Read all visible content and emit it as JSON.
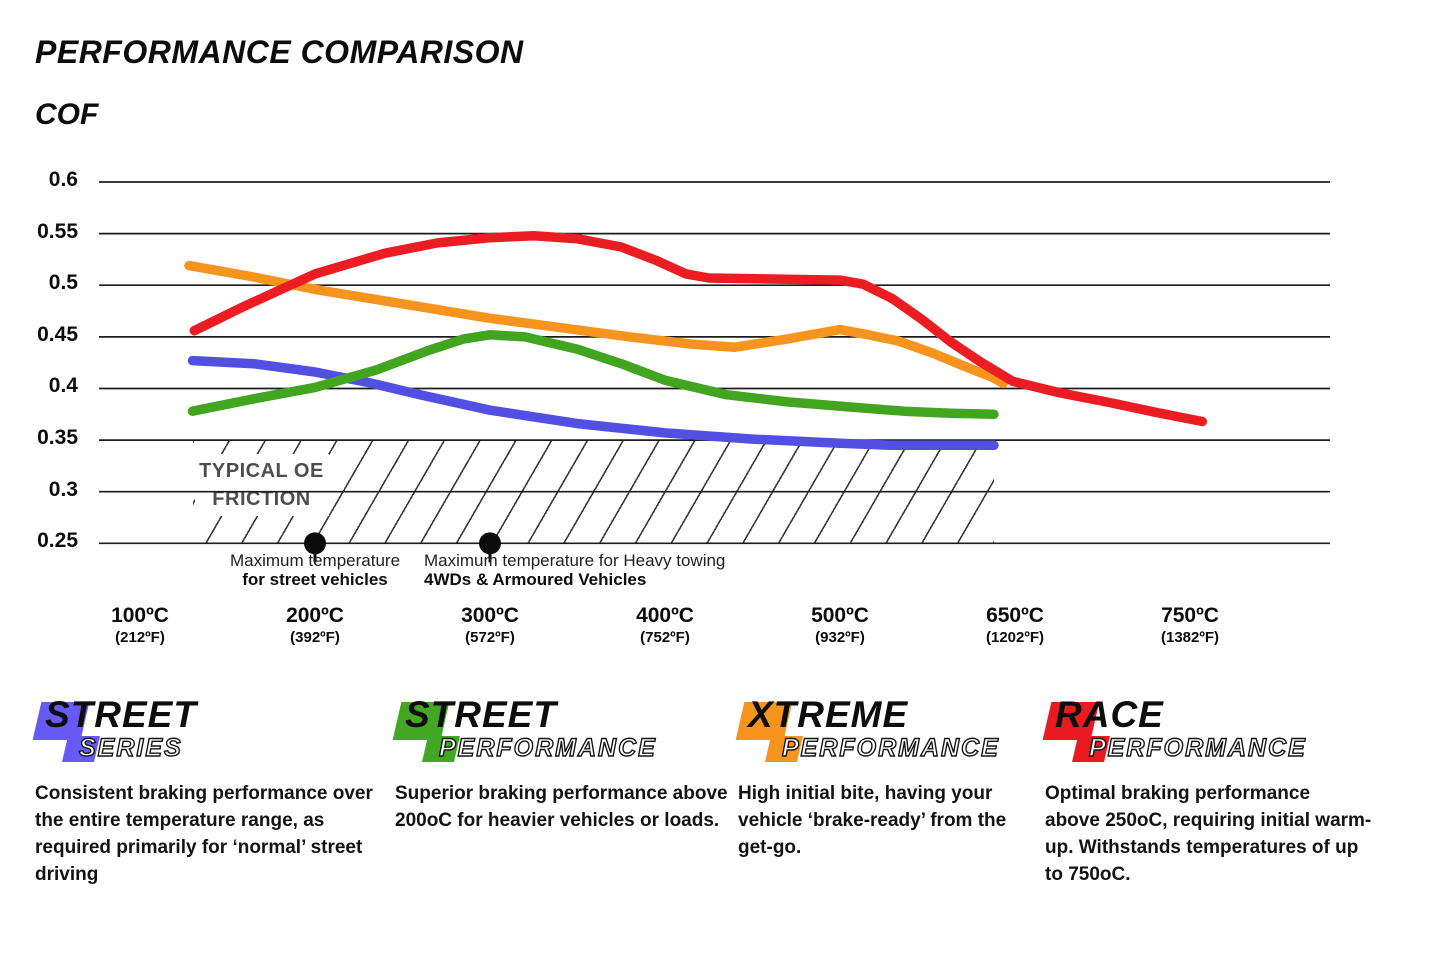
{
  "header": {
    "title": "PERFORMANCE COMPARISON",
    "ylabel": "COF"
  },
  "chart_data": {
    "type": "line",
    "title": "PERFORMANCE COMPARISON",
    "ylabel": "COF",
    "grid": true,
    "ylim": [
      0.25,
      0.6
    ],
    "y_ticks": [
      "0.6",
      "0.55",
      "0.5",
      "0.45",
      "0.4",
      "0.35",
      "0.3",
      "0.25"
    ],
    "x_ticks": [
      {
        "temp": 100,
        "label_c": "100ºC",
        "label_f": "(212ºF)"
      },
      {
        "temp": 200,
        "label_c": "200ºC",
        "label_f": "(392ºF)"
      },
      {
        "temp": 300,
        "label_c": "300ºC",
        "label_f": "(572ºF)"
      },
      {
        "temp": 400,
        "label_c": "400ºC",
        "label_f": "(752ºF)"
      },
      {
        "temp": 500,
        "label_c": "500ºC",
        "label_f": "(932ºF)"
      },
      {
        "temp": 650,
        "label_c": "650ºC",
        "label_f": "(1202ºF)"
      },
      {
        "temp": 750,
        "label_c": "750ºC",
        "label_f": "(1382ºF)"
      }
    ],
    "series": [
      {
        "name": "Street Series",
        "color": "#5250e2",
        "points": [
          [
            130,
            0.427
          ],
          [
            165,
            0.424
          ],
          [
            200,
            0.416
          ],
          [
            230,
            0.406
          ],
          [
            260,
            0.394
          ],
          [
            300,
            0.379
          ],
          [
            350,
            0.366
          ],
          [
            400,
            0.357
          ],
          [
            450,
            0.351
          ],
          [
            500,
            0.347
          ],
          [
            545,
            0.345
          ],
          [
            590,
            0.345
          ],
          [
            632,
            0.345
          ]
        ]
      },
      {
        "name": "Street Performance",
        "color": "#41a51f",
        "points": [
          [
            130,
            0.378
          ],
          [
            165,
            0.39
          ],
          [
            200,
            0.401
          ],
          [
            235,
            0.418
          ],
          [
            265,
            0.437
          ],
          [
            285,
            0.448
          ],
          [
            300,
            0.452
          ],
          [
            320,
            0.45
          ],
          [
            350,
            0.438
          ],
          [
            375,
            0.424
          ],
          [
            400,
            0.408
          ],
          [
            435,
            0.394
          ],
          [
            470,
            0.387
          ],
          [
            510,
            0.382
          ],
          [
            555,
            0.378
          ],
          [
            595,
            0.376
          ],
          [
            632,
            0.375
          ]
        ]
      },
      {
        "name": "Xtreme Performance",
        "color": "#f7941e",
        "points": [
          [
            128,
            0.519
          ],
          [
            165,
            0.508
          ],
          [
            200,
            0.496
          ],
          [
            250,
            0.482
          ],
          [
            300,
            0.468
          ],
          [
            340,
            0.459
          ],
          [
            380,
            0.45
          ],
          [
            415,
            0.443
          ],
          [
            440,
            0.44
          ],
          [
            470,
            0.448
          ],
          [
            500,
            0.457
          ],
          [
            520,
            0.453
          ],
          [
            550,
            0.446
          ],
          [
            580,
            0.434
          ],
          [
            610,
            0.42
          ],
          [
            630,
            0.411
          ],
          [
            640,
            0.405
          ]
        ]
      },
      {
        "name": "Race Performance",
        "color": "#ec1c23",
        "points": [
          [
            131,
            0.456
          ],
          [
            160,
            0.48
          ],
          [
            200,
            0.511
          ],
          [
            240,
            0.531
          ],
          [
            270,
            0.541
          ],
          [
            300,
            0.546
          ],
          [
            325,
            0.548
          ],
          [
            350,
            0.545
          ],
          [
            375,
            0.537
          ],
          [
            395,
            0.524
          ],
          [
            412,
            0.511
          ],
          [
            425,
            0.507
          ],
          [
            460,
            0.506
          ],
          [
            500,
            0.505
          ],
          [
            520,
            0.501
          ],
          [
            545,
            0.487
          ],
          [
            570,
            0.467
          ],
          [
            595,
            0.445
          ],
          [
            620,
            0.426
          ],
          [
            648,
            0.407
          ],
          [
            675,
            0.396
          ],
          [
            705,
            0.386
          ],
          [
            730,
            0.377
          ],
          [
            745,
            0.372
          ],
          [
            757,
            0.368
          ]
        ]
      }
    ],
    "oe_band": {
      "label": "TYPICAL OE\nFRICTION",
      "temp_range": [
        130,
        632
      ],
      "cof_range": [
        0.25,
        0.35
      ]
    },
    "annotations": [
      {
        "temp": 200,
        "cof": 0.25,
        "line1": "Maximum temperature",
        "line2": "for street vehicles"
      },
      {
        "temp": 300,
        "cof": 0.25,
        "line1": "Maximum temperature for Heavy towing",
        "line2": "4WDs & Armoured Vehicles"
      }
    ]
  },
  "legend": [
    {
      "word1": "STREET",
      "word2": "SERIES",
      "color": "#675af2",
      "description": "Consistent braking performance over\nthe entire temperature range, as\nrequired primarily for ‘normal’ street\ndriving"
    },
    {
      "word1": "STREET",
      "word2": "PERFORMANCE",
      "color": "#44a724",
      "description": "Superior braking performance above\n200oC for heavier vehicles or loads."
    },
    {
      "word1": "XTREME",
      "word2": "PERFORMANCE",
      "color": "#f7941e",
      "description": "High initial bite, having your\nvehicle ‘brake-ready’ from the\nget-go."
    },
    {
      "word1": "RACE",
      "word2": "PERFORMANCE",
      "color": "#e91a20",
      "description": "Optimal braking performance\nabove 250oC, requiring initial warm-\nup. Withstands temperatures of up\nto 750oC."
    }
  ]
}
